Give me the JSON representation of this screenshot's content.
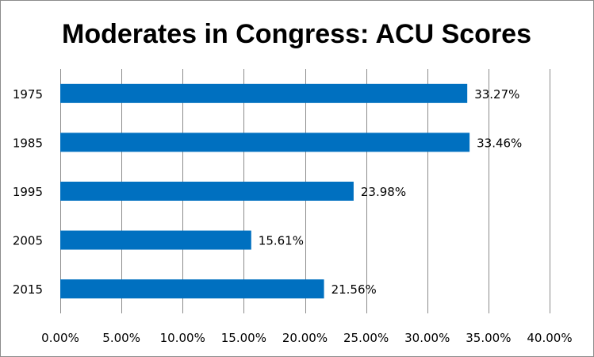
{
  "chart_data": {
    "type": "bar",
    "orientation": "horizontal",
    "title": "Moderates in Congress: ACU Scores",
    "categories": [
      "1975",
      "1985",
      "1995",
      "2005",
      "2015"
    ],
    "values": [
      33.27,
      33.46,
      23.98,
      15.61,
      21.56
    ],
    "value_labels": [
      "33.27%",
      "33.46%",
      "23.98%",
      "15.61%",
      "21.56%"
    ],
    "x_ticks": [
      0,
      5,
      10,
      15,
      20,
      25,
      30,
      35,
      40
    ],
    "x_tick_labels": [
      "0.00%",
      "5.00%",
      "10.00%",
      "15.00%",
      "20.00%",
      "25.00%",
      "30.00%",
      "35.00%",
      "40.00%"
    ],
    "xlim": [
      0,
      40
    ],
    "grid": true,
    "legend": "none",
    "bar_color": "#0070C0"
  }
}
